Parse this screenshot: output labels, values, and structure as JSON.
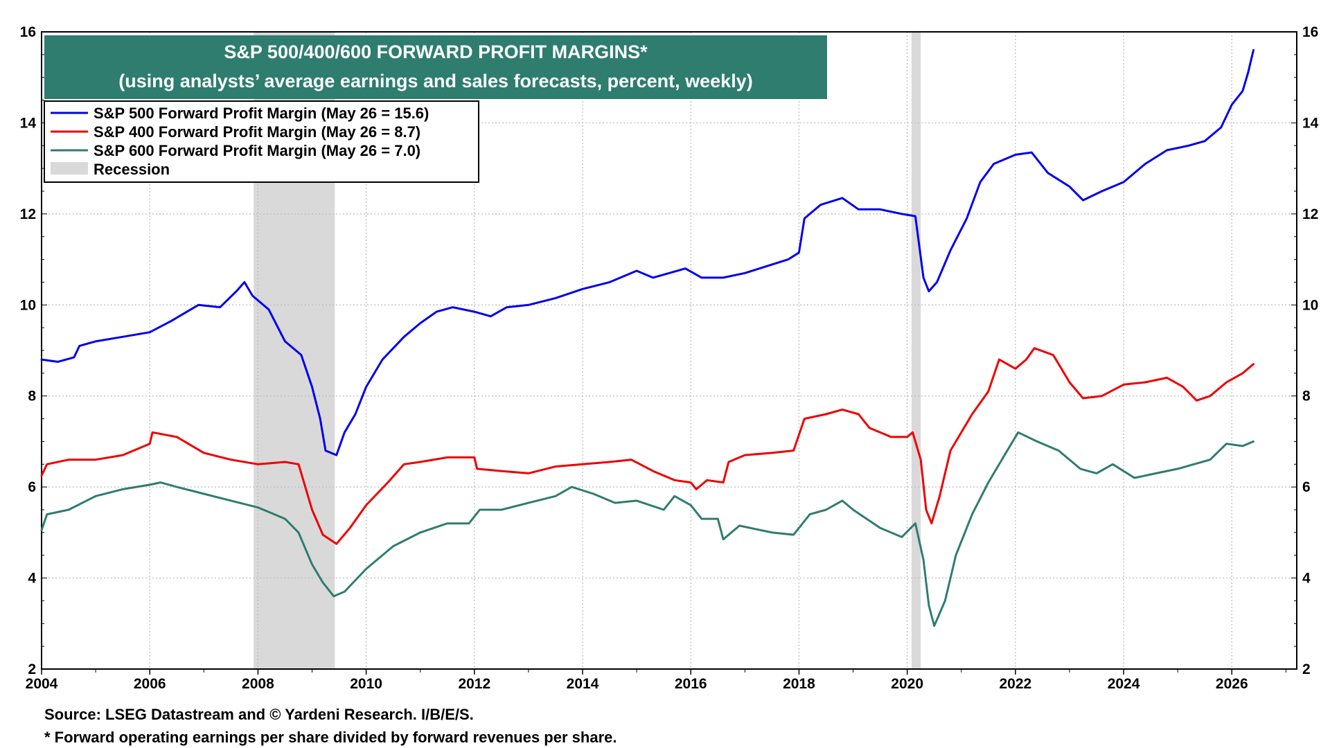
{
  "chart_data": {
    "type": "line",
    "title": "S&P 500/400/600 FORWARD PROFIT MARGINS*",
    "subtitle": "(using analysts’ average earnings and sales forecasts, percent, weekly)",
    "xlim": [
      2004,
      2027.2
    ],
    "ylim": [
      2,
      16
    ],
    "x_ticks": [
      "2004",
      "2006",
      "2008",
      "2010",
      "2012",
      "2014",
      "2016",
      "2018",
      "2020",
      "2022",
      "2024",
      "2026"
    ],
    "y_ticks": [
      "2",
      "4",
      "6",
      "8",
      "10",
      "12",
      "14",
      "16"
    ],
    "grid": true,
    "legend_position": "top-left",
    "recession_label": "Recession",
    "recession_color": "#d9d9d9",
    "recessions": [
      [
        2007.92,
        2009.42
      ],
      [
        2020.08,
        2020.25
      ]
    ],
    "series": [
      {
        "name": "S&P 500 Forward Profit Margin (May 26 = 15.6)",
        "color": "#0000ee",
        "points": [
          [
            2004.0,
            8.8
          ],
          [
            2004.3,
            8.75
          ],
          [
            2004.6,
            8.85
          ],
          [
            2004.7,
            9.1
          ],
          [
            2005.0,
            9.2
          ],
          [
            2005.5,
            9.3
          ],
          [
            2006.0,
            9.4
          ],
          [
            2006.4,
            9.65
          ],
          [
            2006.9,
            10.0
          ],
          [
            2007.3,
            9.95
          ],
          [
            2007.6,
            10.3
          ],
          [
            2007.75,
            10.5
          ],
          [
            2007.9,
            10.2
          ],
          [
            2008.2,
            9.9
          ],
          [
            2008.5,
            9.2
          ],
          [
            2008.8,
            8.9
          ],
          [
            2009.0,
            8.2
          ],
          [
            2009.15,
            7.5
          ],
          [
            2009.25,
            6.8
          ],
          [
            2009.45,
            6.7
          ],
          [
            2009.6,
            7.2
          ],
          [
            2009.8,
            7.6
          ],
          [
            2010.0,
            8.2
          ],
          [
            2010.3,
            8.8
          ],
          [
            2010.7,
            9.3
          ],
          [
            2011.0,
            9.6
          ],
          [
            2011.3,
            9.85
          ],
          [
            2011.6,
            9.95
          ],
          [
            2012.0,
            9.85
          ],
          [
            2012.3,
            9.75
          ],
          [
            2012.6,
            9.95
          ],
          [
            2013.0,
            10.0
          ],
          [
            2013.5,
            10.15
          ],
          [
            2014.0,
            10.35
          ],
          [
            2014.5,
            10.5
          ],
          [
            2015.0,
            10.75
          ],
          [
            2015.3,
            10.6
          ],
          [
            2015.6,
            10.7
          ],
          [
            2015.9,
            10.8
          ],
          [
            2016.2,
            10.6
          ],
          [
            2016.6,
            10.6
          ],
          [
            2017.0,
            10.7
          ],
          [
            2017.4,
            10.85
          ],
          [
            2017.8,
            11.0
          ],
          [
            2018.0,
            11.15
          ],
          [
            2018.1,
            11.9
          ],
          [
            2018.4,
            12.2
          ],
          [
            2018.8,
            12.35
          ],
          [
            2019.1,
            12.1
          ],
          [
            2019.5,
            12.1
          ],
          [
            2019.9,
            12.0
          ],
          [
            2020.15,
            11.95
          ],
          [
            2020.3,
            10.6
          ],
          [
            2020.4,
            10.3
          ],
          [
            2020.55,
            10.5
          ],
          [
            2020.8,
            11.2
          ],
          [
            2021.1,
            11.9
          ],
          [
            2021.35,
            12.7
          ],
          [
            2021.6,
            13.1
          ],
          [
            2022.0,
            13.3
          ],
          [
            2022.3,
            13.35
          ],
          [
            2022.6,
            12.9
          ],
          [
            2023.0,
            12.6
          ],
          [
            2023.25,
            12.3
          ],
          [
            2023.6,
            12.5
          ],
          [
            2024.0,
            12.7
          ],
          [
            2024.4,
            13.1
          ],
          [
            2024.8,
            13.4
          ],
          [
            2025.2,
            13.5
          ],
          [
            2025.5,
            13.6
          ],
          [
            2025.8,
            13.9
          ],
          [
            2026.0,
            14.4
          ],
          [
            2026.2,
            14.7
          ],
          [
            2026.3,
            15.1
          ],
          [
            2026.4,
            15.6
          ]
        ]
      },
      {
        "name": "S&P 400 Forward Profit Margin (May 26 = 8.7)",
        "color": "#ee0000",
        "points": [
          [
            2004.0,
            6.25
          ],
          [
            2004.1,
            6.5
          ],
          [
            2004.5,
            6.6
          ],
          [
            2005.0,
            6.6
          ],
          [
            2005.5,
            6.7
          ],
          [
            2006.0,
            6.95
          ],
          [
            2006.05,
            7.2
          ],
          [
            2006.5,
            7.1
          ],
          [
            2007.0,
            6.75
          ],
          [
            2007.5,
            6.6
          ],
          [
            2008.0,
            6.5
          ],
          [
            2008.5,
            6.55
          ],
          [
            2008.75,
            6.5
          ],
          [
            2008.85,
            6.1
          ],
          [
            2009.0,
            5.5
          ],
          [
            2009.2,
            4.95
          ],
          [
            2009.45,
            4.75
          ],
          [
            2009.7,
            5.1
          ],
          [
            2010.0,
            5.6
          ],
          [
            2010.4,
            6.1
          ],
          [
            2010.7,
            6.5
          ],
          [
            2011.0,
            6.55
          ],
          [
            2011.5,
            6.65
          ],
          [
            2012.0,
            6.65
          ],
          [
            2012.05,
            6.4
          ],
          [
            2012.5,
            6.35
          ],
          [
            2013.0,
            6.3
          ],
          [
            2013.5,
            6.45
          ],
          [
            2014.0,
            6.5
          ],
          [
            2014.5,
            6.55
          ],
          [
            2014.9,
            6.6
          ],
          [
            2015.3,
            6.35
          ],
          [
            2015.7,
            6.15
          ],
          [
            2016.0,
            6.1
          ],
          [
            2016.1,
            5.95
          ],
          [
            2016.3,
            6.15
          ],
          [
            2016.6,
            6.1
          ],
          [
            2016.7,
            6.55
          ],
          [
            2017.0,
            6.7
          ],
          [
            2017.5,
            6.75
          ],
          [
            2017.9,
            6.8
          ],
          [
            2018.1,
            7.5
          ],
          [
            2018.5,
            7.6
          ],
          [
            2018.8,
            7.7
          ],
          [
            2019.1,
            7.6
          ],
          [
            2019.3,
            7.3
          ],
          [
            2019.7,
            7.1
          ],
          [
            2020.0,
            7.1
          ],
          [
            2020.1,
            7.2
          ],
          [
            2020.25,
            6.6
          ],
          [
            2020.35,
            5.5
          ],
          [
            2020.45,
            5.2
          ],
          [
            2020.6,
            5.8
          ],
          [
            2020.8,
            6.8
          ],
          [
            2021.2,
            7.6
          ],
          [
            2021.5,
            8.1
          ],
          [
            2021.7,
            8.8
          ],
          [
            2022.0,
            8.6
          ],
          [
            2022.2,
            8.8
          ],
          [
            2022.35,
            9.05
          ],
          [
            2022.7,
            8.9
          ],
          [
            2023.0,
            8.3
          ],
          [
            2023.25,
            7.95
          ],
          [
            2023.6,
            8.0
          ],
          [
            2024.0,
            8.25
          ],
          [
            2024.4,
            8.3
          ],
          [
            2024.8,
            8.4
          ],
          [
            2025.1,
            8.2
          ],
          [
            2025.35,
            7.9
          ],
          [
            2025.6,
            8.0
          ],
          [
            2025.9,
            8.3
          ],
          [
            2026.2,
            8.5
          ],
          [
            2026.4,
            8.7
          ]
        ]
      },
      {
        "name": "S&P 600 Forward Profit Margin (May 26 = 7.0)",
        "color": "#2e7d6e",
        "points": [
          [
            2004.0,
            5.05
          ],
          [
            2004.1,
            5.4
          ],
          [
            2004.5,
            5.5
          ],
          [
            2005.0,
            5.8
          ],
          [
            2005.5,
            5.95
          ],
          [
            2006.0,
            6.05
          ],
          [
            2006.2,
            6.1
          ],
          [
            2006.5,
            6.0
          ],
          [
            2007.0,
            5.85
          ],
          [
            2007.5,
            5.7
          ],
          [
            2008.0,
            5.55
          ],
          [
            2008.5,
            5.3
          ],
          [
            2008.75,
            5.0
          ],
          [
            2009.0,
            4.3
          ],
          [
            2009.2,
            3.9
          ],
          [
            2009.4,
            3.6
          ],
          [
            2009.6,
            3.7
          ],
          [
            2010.0,
            4.2
          ],
          [
            2010.5,
            4.7
          ],
          [
            2011.0,
            5.0
          ],
          [
            2011.5,
            5.2
          ],
          [
            2011.9,
            5.2
          ],
          [
            2012.1,
            5.5
          ],
          [
            2012.5,
            5.5
          ],
          [
            2013.0,
            5.65
          ],
          [
            2013.5,
            5.8
          ],
          [
            2013.8,
            6.0
          ],
          [
            2014.2,
            5.85
          ],
          [
            2014.6,
            5.65
          ],
          [
            2015.0,
            5.7
          ],
          [
            2015.5,
            5.5
          ],
          [
            2015.7,
            5.8
          ],
          [
            2016.0,
            5.6
          ],
          [
            2016.2,
            5.3
          ],
          [
            2016.5,
            5.3
          ],
          [
            2016.6,
            4.85
          ],
          [
            2016.9,
            5.15
          ],
          [
            2017.5,
            5.0
          ],
          [
            2017.9,
            4.95
          ],
          [
            2018.2,
            5.4
          ],
          [
            2018.5,
            5.5
          ],
          [
            2018.8,
            5.7
          ],
          [
            2019.0,
            5.5
          ],
          [
            2019.5,
            5.1
          ],
          [
            2019.9,
            4.9
          ],
          [
            2020.15,
            5.2
          ],
          [
            2020.3,
            4.4
          ],
          [
            2020.4,
            3.4
          ],
          [
            2020.5,
            2.95
          ],
          [
            2020.7,
            3.5
          ],
          [
            2020.9,
            4.5
          ],
          [
            2021.2,
            5.4
          ],
          [
            2021.5,
            6.1
          ],
          [
            2021.8,
            6.7
          ],
          [
            2022.05,
            7.2
          ],
          [
            2022.4,
            7.0
          ],
          [
            2022.8,
            6.8
          ],
          [
            2023.2,
            6.4
          ],
          [
            2023.5,
            6.3
          ],
          [
            2023.8,
            6.5
          ],
          [
            2024.2,
            6.2
          ],
          [
            2024.6,
            6.3
          ],
          [
            2025.0,
            6.4
          ],
          [
            2025.3,
            6.5
          ],
          [
            2025.6,
            6.6
          ],
          [
            2025.9,
            6.95
          ],
          [
            2026.2,
            6.9
          ],
          [
            2026.4,
            7.0
          ]
        ]
      }
    ],
    "footnotes": [
      "Source: LSEG Datastream and © Yardeni Research. I/B/E/S.",
      "* Forward operating earnings per share divided by forward revenues per share."
    ]
  },
  "colors": {
    "title_box": "#2e7d6e",
    "title_text": "#ffffff",
    "grid": "#bbbbbb"
  }
}
